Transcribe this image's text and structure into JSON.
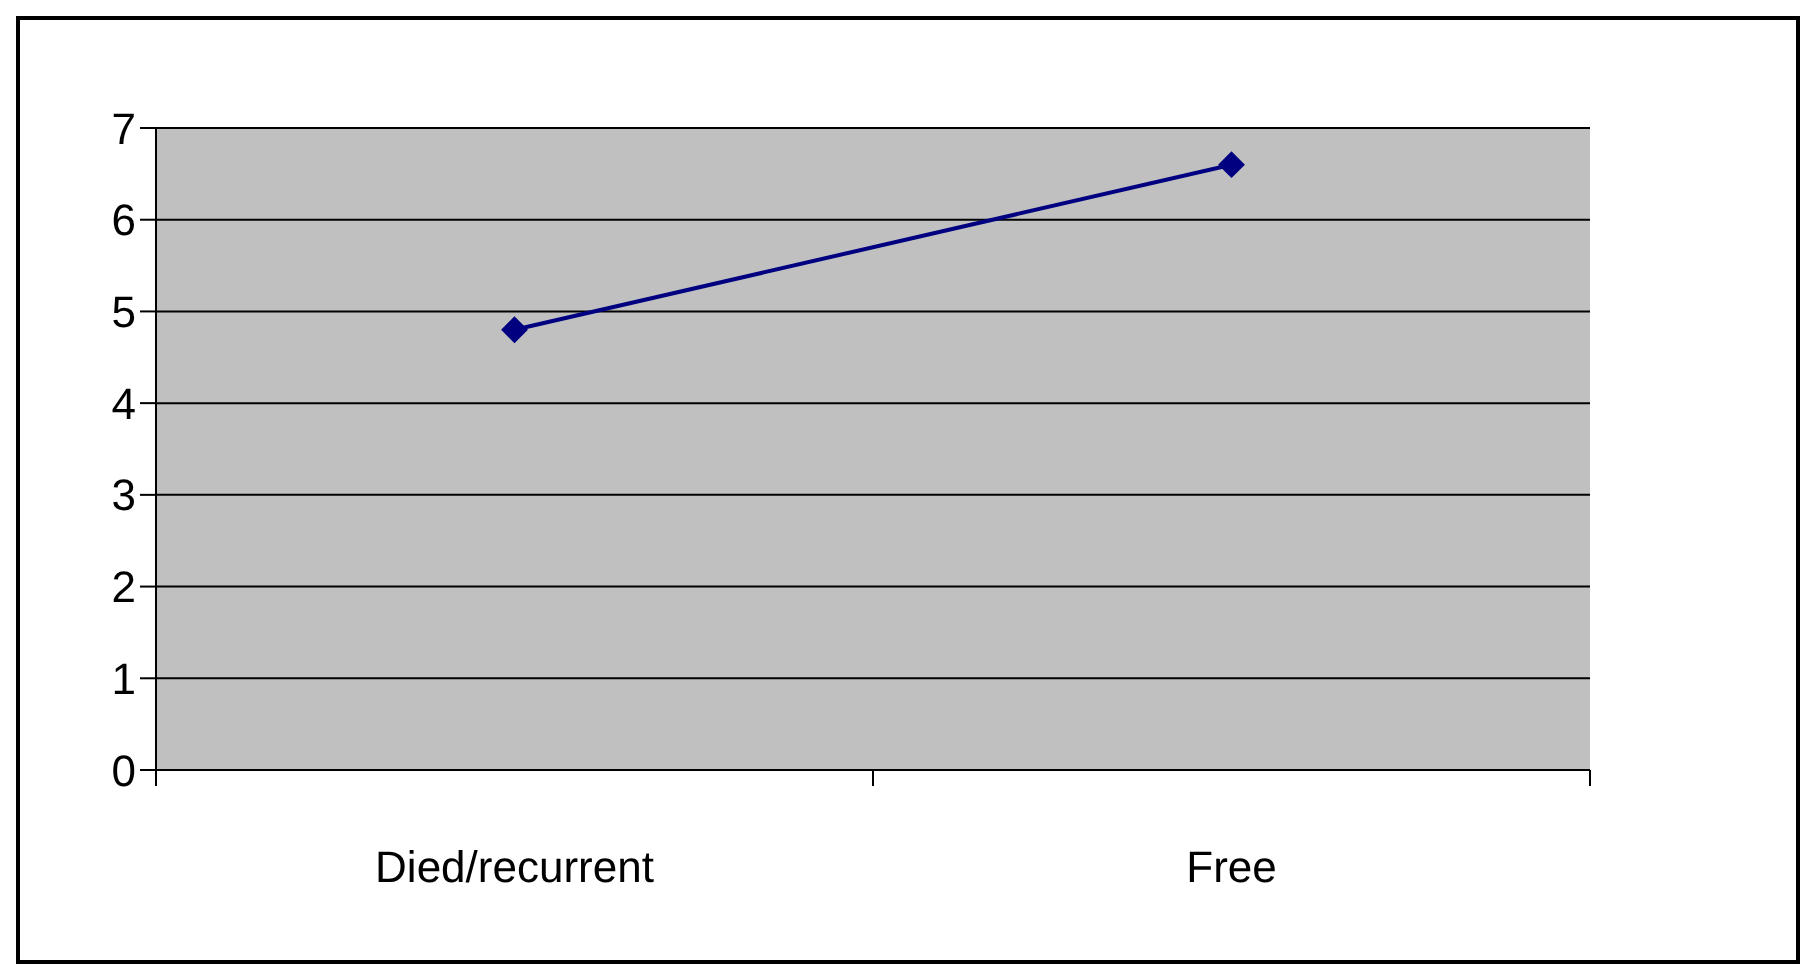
{
  "chart_data": {
    "type": "line",
    "categories": [
      "Died/recurrent",
      "Free"
    ],
    "series": [
      {
        "color": "#000080",
        "values": [
          4.8,
          6.6
        ]
      }
    ],
    "ylim": [
      0,
      7
    ],
    "yticks": [
      0,
      1,
      2,
      3,
      4,
      5,
      6,
      7
    ],
    "grid": "y",
    "marker": "diamond"
  }
}
